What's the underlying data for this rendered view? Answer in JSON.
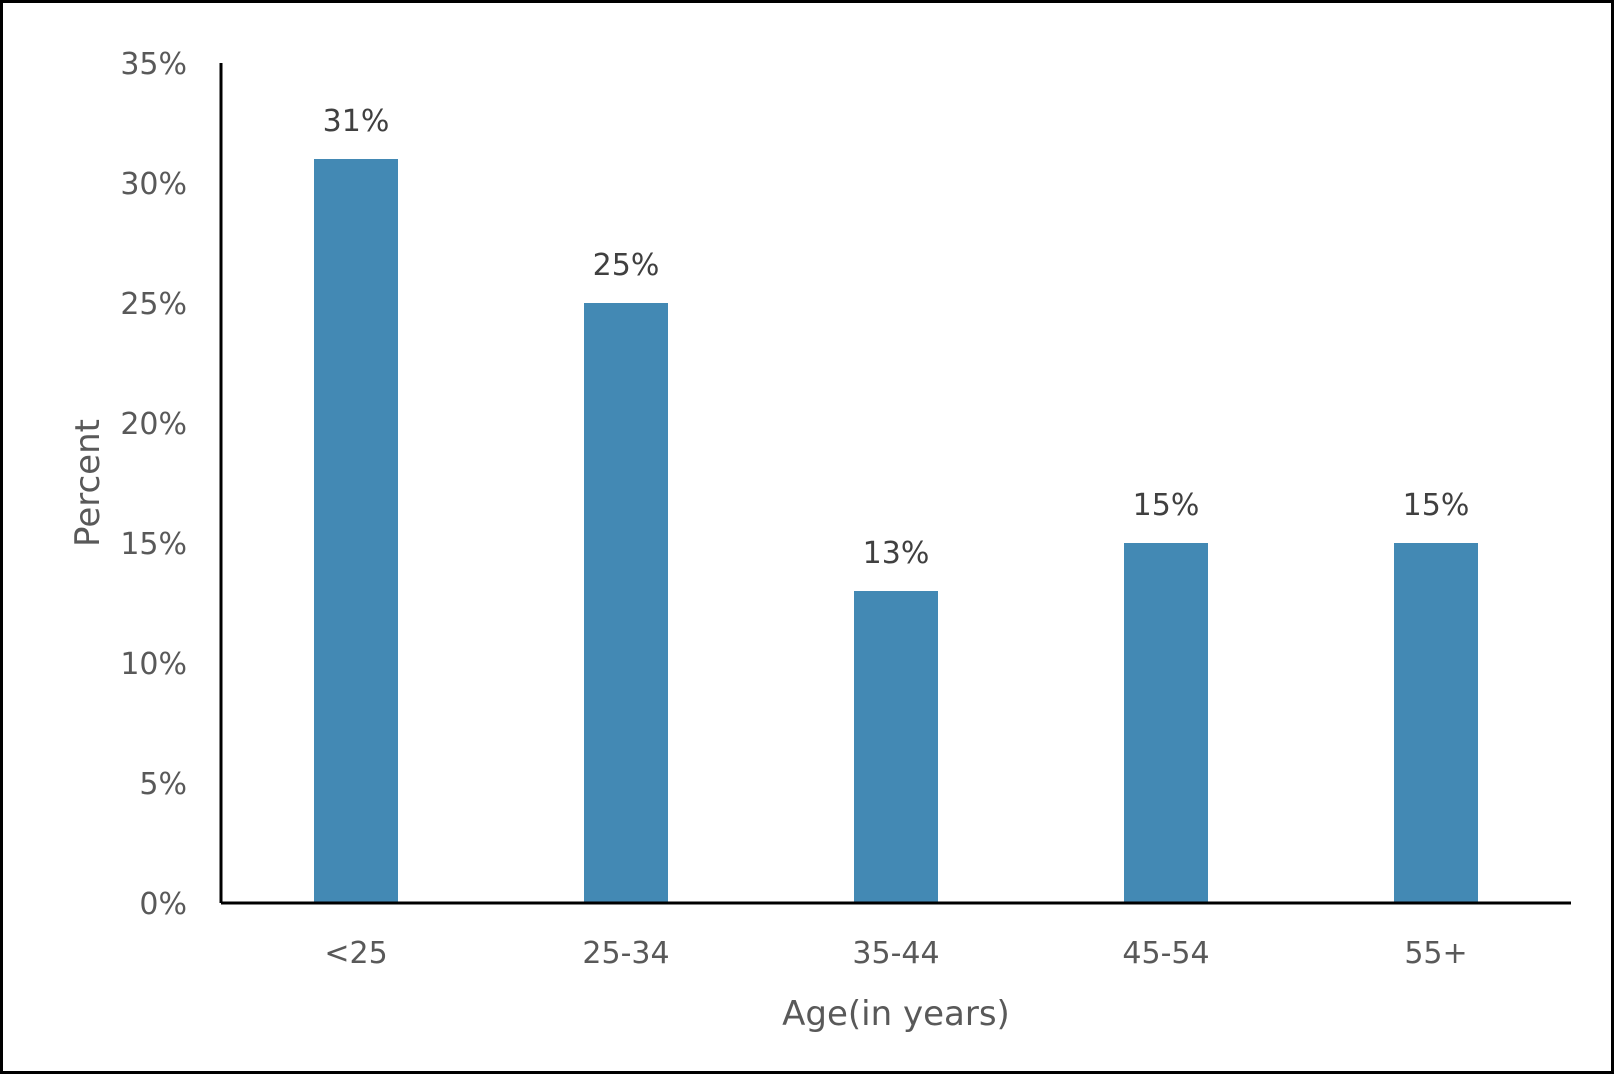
{
  "chart_data": {
    "type": "bar",
    "categories": [
      "<25",
      "25-34",
      "35-44",
      "45-54",
      "55+"
    ],
    "values": [
      31,
      25,
      13,
      15,
      15
    ],
    "data_labels": [
      "31%",
      "25%",
      "13%",
      "15%",
      "15%"
    ],
    "xlabel": "Age(in years)",
    "ylabel": "Percent",
    "ylim": [
      0,
      35
    ],
    "y_ticks": [
      0,
      5,
      10,
      15,
      20,
      25,
      30,
      35
    ],
    "y_tick_labels": [
      "0%",
      "5%",
      "10%",
      "15%",
      "20%",
      "25%",
      "30%",
      "35%"
    ],
    "grid": false,
    "bar_color": "#4389b4",
    "axis_color": "#000000"
  }
}
